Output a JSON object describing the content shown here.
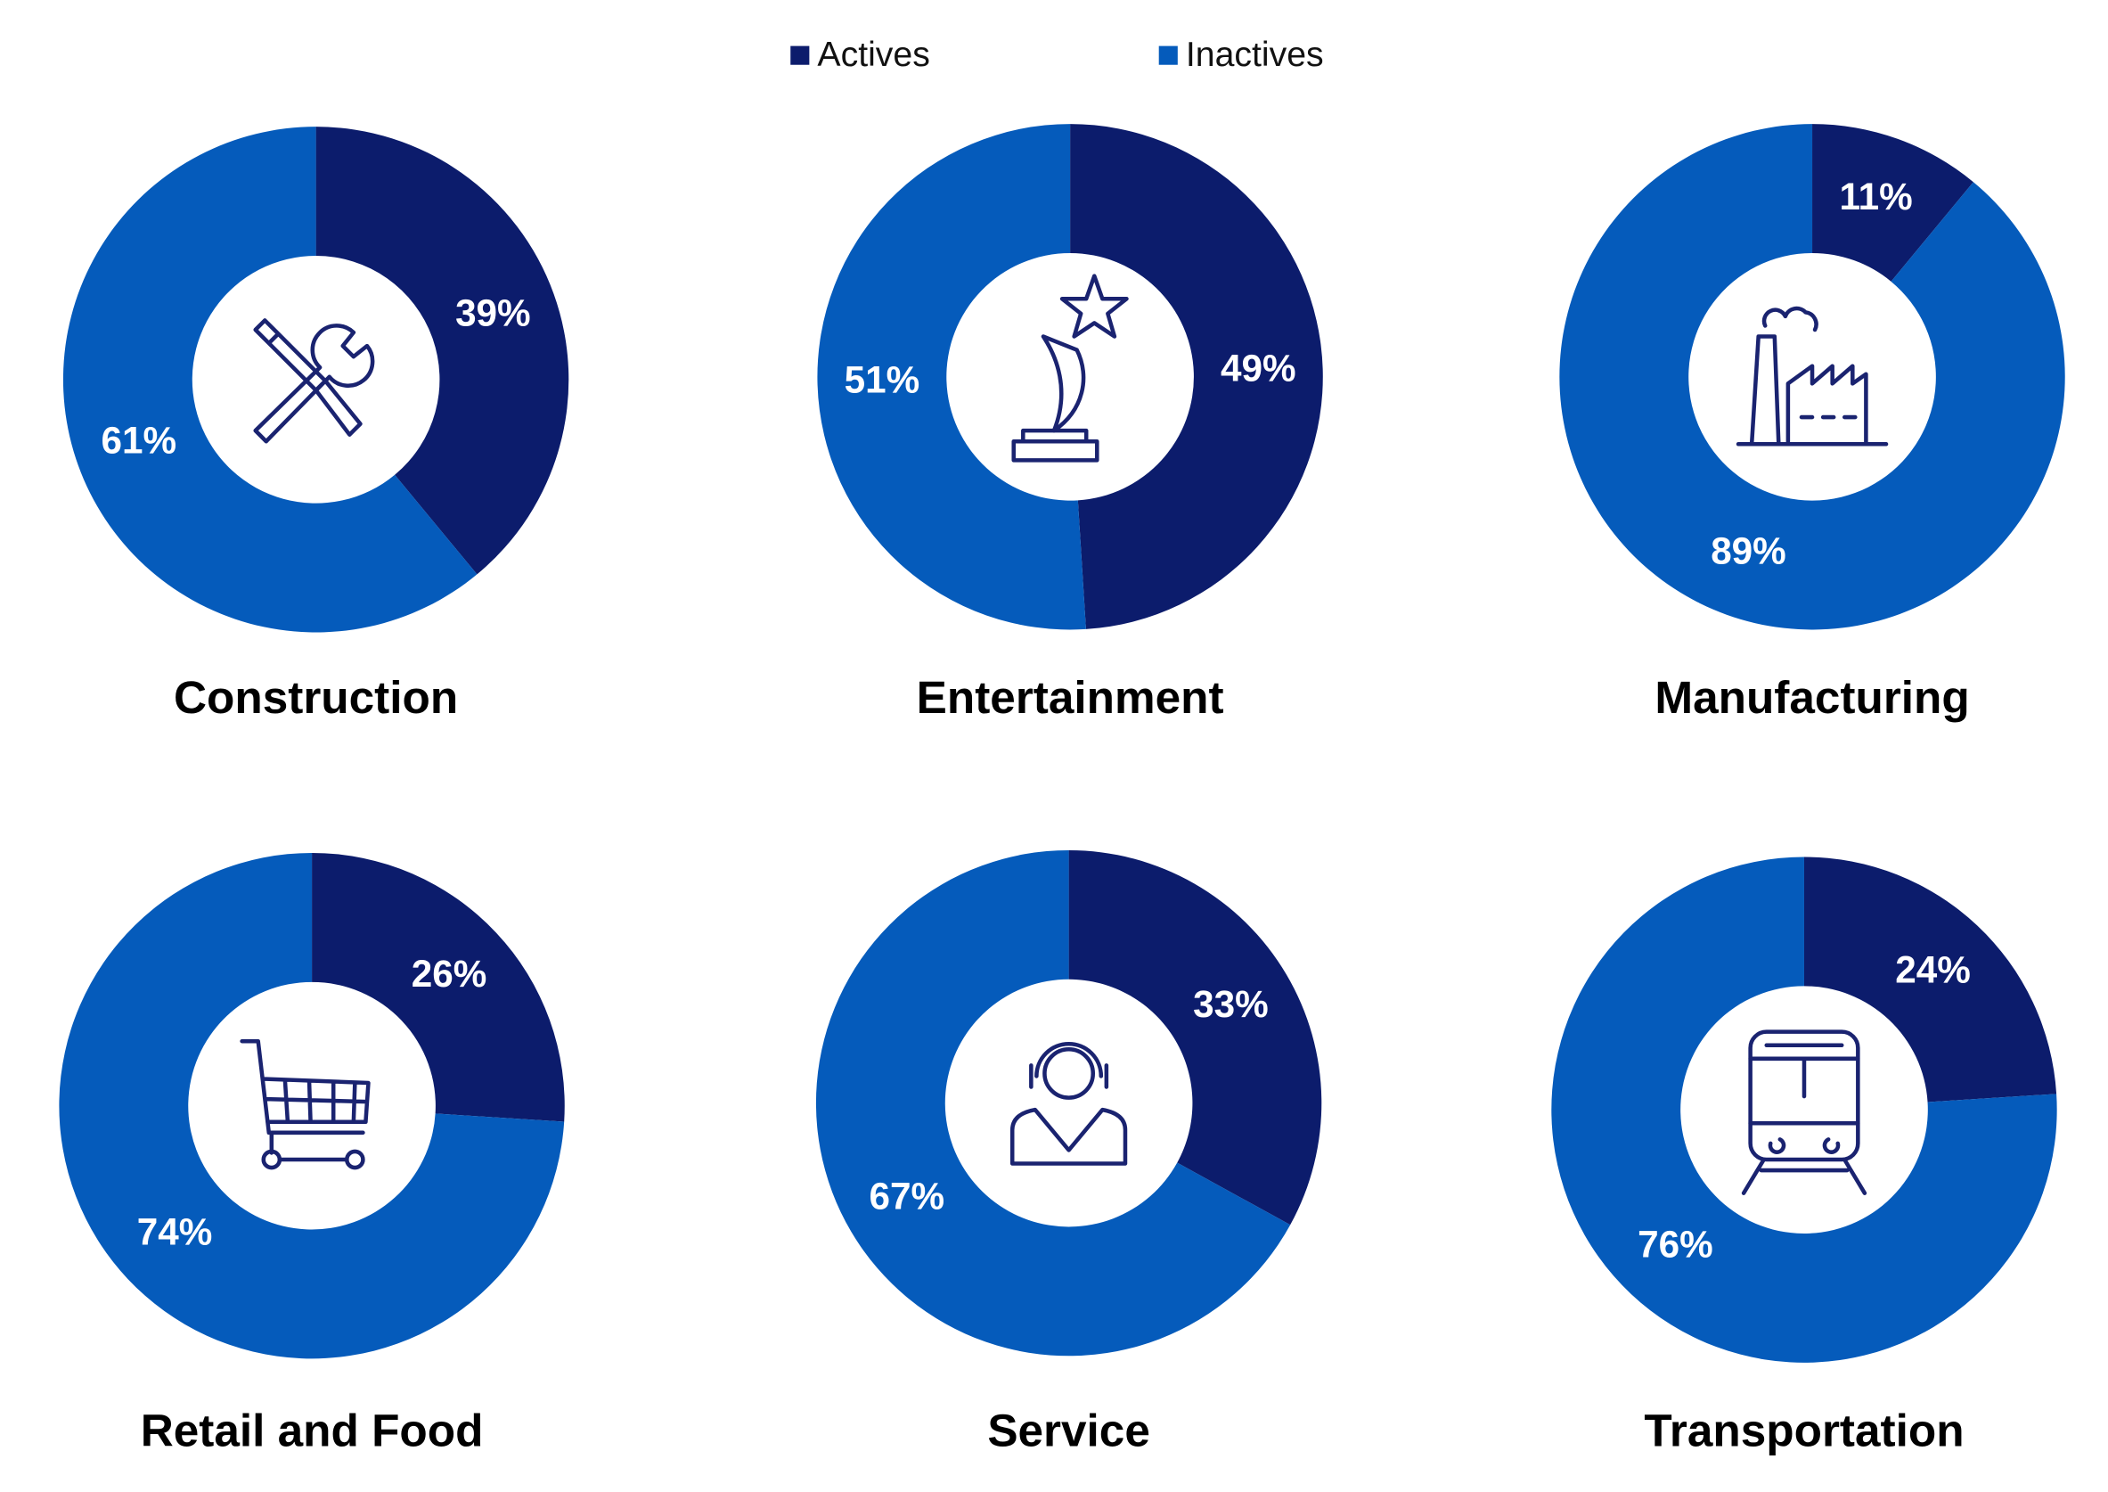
{
  "legend": {
    "names": [
      "Actives",
      "Inactives"
    ],
    "colors": [
      "#0c1c6c",
      "#055bbb"
    ]
  },
  "chart_data": [
    {
      "type": "donut",
      "title": "Construction",
      "values": [
        39,
        61
      ],
      "value_labels": [
        "39%",
        "61%"
      ]
    },
    {
      "type": "donut",
      "title": "Entertainment",
      "values": [
        49,
        51
      ],
      "value_labels": [
        "49%",
        "51%"
      ]
    },
    {
      "type": "donut",
      "title": "Manufacturing",
      "values": [
        11,
        89
      ],
      "value_labels": [
        "11%",
        "89%"
      ]
    },
    {
      "type": "donut",
      "title": "Retail and Food",
      "values": [
        26,
        74
      ],
      "value_labels": [
        "26%",
        "74%"
      ]
    },
    {
      "type": "donut",
      "title": "Service",
      "values": [
        33,
        67
      ],
      "value_labels": [
        "33%",
        "67%"
      ]
    },
    {
      "type": "donut",
      "title": "Transportation",
      "values": [
        24,
        76
      ],
      "value_labels": [
        "24%",
        "76%"
      ]
    }
  ]
}
